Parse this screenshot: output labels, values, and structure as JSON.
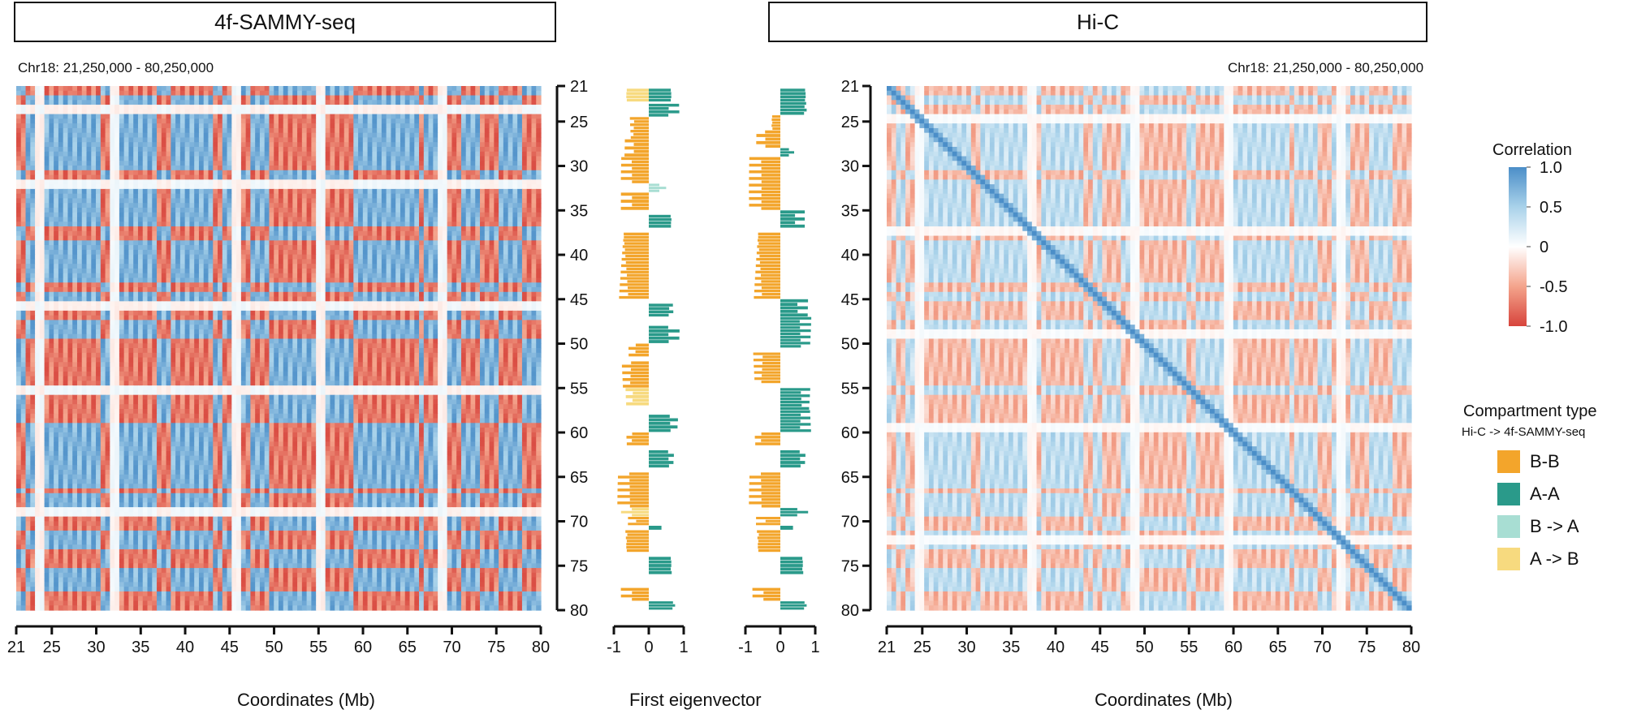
{
  "panels": {
    "left_title": "4f-SAMMY-seq",
    "right_title": "Hi-C",
    "left_region": "Chr18: 21,250,000 - 80,250,000",
    "right_region": "Chr18: 21,250,000 - 80,250,000",
    "x_label_left": "Coordinates (Mb)",
    "x_label_middle": "First eigenvector",
    "x_label_right": "Coordinates (Mb)"
  },
  "legend": {
    "correlation_title": "Correlation",
    "correlation_ticks": [
      "1.0",
      "0.5",
      "0",
      "-0.5",
      "-1.0"
    ],
    "correlation_colors": [
      "#4b8ec8",
      "#a9d2ea",
      "#ffffff",
      "#f4a48c",
      "#d7443c"
    ],
    "compartment_title": "Compartment type",
    "compartment_subtitle": "Hi-C -> 4f-SAMMY-seq",
    "compartment_items": [
      {
        "label": "B-B",
        "color": "#f3a52b"
      },
      {
        "label": "A-A",
        "color": "#2a9a8a"
      },
      {
        "label": "B -> A",
        "color": "#a8ded3"
      },
      {
        "label": "A -> B",
        "color": "#f7da7f"
      }
    ]
  },
  "chart_data": [
    {
      "type": "heatmap",
      "title": "4f-SAMMY-seq",
      "region": "Chr18: 21,250,000 - 80,250,000",
      "xlabel": "Coordinates (Mb)",
      "x_ticks": [
        "21",
        "25",
        "30",
        "35",
        "40",
        "45",
        "50",
        "55",
        "60",
        "65",
        "70",
        "75",
        "80"
      ],
      "y_ticks": [
        "21",
        "25",
        "30",
        "35",
        "40",
        "45",
        "50",
        "55",
        "60",
        "65",
        "70",
        "75",
        "80"
      ],
      "xlim": [
        21,
        80
      ],
      "ylim": [
        21,
        80
      ],
      "compartment_sign_by_bin": [
        1,
        1,
        -1,
        -1,
        1,
        1,
        -1,
        -1,
        -1,
        -1,
        -1,
        -1,
        -1,
        -1,
        -1,
        -1,
        -1,
        -1,
        1,
        1,
        -1,
        -1,
        -1,
        -1,
        -1,
        -1,
        -1,
        -1,
        -1,
        -1,
        1,
        1,
        1,
        -1,
        -1,
        -1,
        -1,
        -1,
        -1,
        -1,
        -1,
        -1,
        1,
        1,
        -1,
        -1,
        1,
        1,
        1,
        1,
        -1,
        -1,
        -1,
        -1,
        1,
        1,
        1,
        1,
        1,
        1,
        1,
        1,
        1,
        1,
        -1,
        -1,
        1,
        1,
        1,
        1,
        1,
        1,
        -1,
        -1,
        -1,
        -1,
        -1,
        -1,
        -1,
        -1,
        -1,
        -1,
        -1,
        -1,
        -1,
        -1,
        1,
        -1,
        -1,
        -1,
        -1,
        -1,
        1,
        1,
        1,
        -1,
        -1,
        -1,
        -1,
        1,
        1,
        1,
        1,
        -1,
        -1,
        -1,
        -1,
        -1,
        1,
        1,
        1,
        1
      ],
      "value_range": [
        -1.0,
        1.0
      ]
    },
    {
      "type": "bar",
      "xlabel": "First eigenvector",
      "x_ticks": [
        "-1",
        "0",
        "1"
      ],
      "xlim": [
        -1,
        1
      ],
      "ylim": [
        21,
        80
      ],
      "description_series": "4f-SAMMY-seq first eigenvector along Chr18, colored by compartment type",
      "segments": [
        {
          "start": 21.3,
          "end": 22.8,
          "value": -0.8,
          "type": "A -> B"
        },
        {
          "start": 21.3,
          "end": 22.8,
          "value": 0.8,
          "type": "A-A"
        },
        {
          "start": 23.0,
          "end": 24.5,
          "value": 0.9,
          "type": "A-A"
        },
        {
          "start": 24.5,
          "end": 27.0,
          "value": -0.6,
          "type": "B-B"
        },
        {
          "start": 27.0,
          "end": 29.0,
          "value": -0.7,
          "type": "B-B"
        },
        {
          "start": 29.0,
          "end": 32.0,
          "value": -0.8,
          "type": "B-B"
        },
        {
          "start": 32.0,
          "end": 33.0,
          "value": 0.5,
          "type": "B -> A"
        },
        {
          "start": 33.0,
          "end": 35.0,
          "value": -0.8,
          "type": "B-B"
        },
        {
          "start": 35.5,
          "end": 37.0,
          "value": 0.8,
          "type": "A-A"
        },
        {
          "start": 37.5,
          "end": 45.0,
          "value": -0.9,
          "type": "B-B"
        },
        {
          "start": 45.5,
          "end": 47.0,
          "value": 0.8,
          "type": "A-A"
        },
        {
          "start": 48.0,
          "end": 50.0,
          "value": 0.9,
          "type": "A-A"
        },
        {
          "start": 50.0,
          "end": 51.5,
          "value": -0.6,
          "type": "B-B"
        },
        {
          "start": 52.0,
          "end": 55.0,
          "value": -0.8,
          "type": "B-B"
        },
        {
          "start": 55.0,
          "end": 57.0,
          "value": -0.7,
          "type": "A -> B"
        },
        {
          "start": 58.0,
          "end": 60.0,
          "value": 0.9,
          "type": "A-A"
        },
        {
          "start": 60.0,
          "end": 61.5,
          "value": -0.7,
          "type": "B-B"
        },
        {
          "start": 62.0,
          "end": 64.0,
          "value": 0.8,
          "type": "A-A"
        },
        {
          "start": 64.5,
          "end": 68.5,
          "value": -0.9,
          "type": "B-B"
        },
        {
          "start": 68.5,
          "end": 69.5,
          "value": -0.8,
          "type": "A -> B"
        },
        {
          "start": 69.5,
          "end": 70.5,
          "value": -0.6,
          "type": "B-B"
        },
        {
          "start": 70.5,
          "end": 71.0,
          "value": 0.6,
          "type": "A-A"
        },
        {
          "start": 71.0,
          "end": 73.5,
          "value": -0.8,
          "type": "B-B"
        },
        {
          "start": 74.0,
          "end": 76.0,
          "value": 0.8,
          "type": "A-A"
        },
        {
          "start": 77.5,
          "end": 79.0,
          "value": -0.8,
          "type": "B-B"
        },
        {
          "start": 79.0,
          "end": 80.0,
          "value": 0.9,
          "type": "A-A"
        }
      ]
    },
    {
      "type": "bar",
      "xlabel": "",
      "x_ticks": [
        "-1",
        "0",
        "1"
      ],
      "xlim": [
        -1,
        1
      ],
      "ylim": [
        21,
        80
      ],
      "description_series": "Hi-C first eigenvector along Chr18",
      "segments": [
        {
          "start": 21.3,
          "end": 24.3,
          "value": 0.9,
          "type": "A-A"
        },
        {
          "start": 24.3,
          "end": 26.0,
          "value": -0.3,
          "type": "B-B"
        },
        {
          "start": 26.0,
          "end": 28.0,
          "value": -0.7,
          "type": "B-B"
        },
        {
          "start": 28.0,
          "end": 29.0,
          "value": 0.4,
          "type": "A-A"
        },
        {
          "start": 29.0,
          "end": 35.0,
          "value": -0.9,
          "type": "B-B"
        },
        {
          "start": 35.0,
          "end": 37.0,
          "value": 0.7,
          "type": "A-A"
        },
        {
          "start": 37.5,
          "end": 45.0,
          "value": -0.8,
          "type": "B-B"
        },
        {
          "start": 45.0,
          "end": 47.0,
          "value": 0.8,
          "type": "A-A"
        },
        {
          "start": 47.0,
          "end": 50.5,
          "value": 0.9,
          "type": "A-A"
        },
        {
          "start": 51.0,
          "end": 54.5,
          "value": -0.8,
          "type": "B-B"
        },
        {
          "start": 55.0,
          "end": 57.5,
          "value": 0.9,
          "type": "A-A"
        },
        {
          "start": 57.5,
          "end": 60.0,
          "value": 0.9,
          "type": "A-A"
        },
        {
          "start": 60.0,
          "end": 61.5,
          "value": -0.8,
          "type": "B-B"
        },
        {
          "start": 62.0,
          "end": 64.0,
          "value": 0.8,
          "type": "A-A"
        },
        {
          "start": 64.5,
          "end": 68.5,
          "value": -0.9,
          "type": "B-B"
        },
        {
          "start": 68.5,
          "end": 69.5,
          "value": 0.8,
          "type": "A-A"
        },
        {
          "start": 69.5,
          "end": 70.5,
          "value": -0.7,
          "type": "B-B"
        },
        {
          "start": 70.5,
          "end": 71.0,
          "value": 0.6,
          "type": "A-A"
        },
        {
          "start": 71.0,
          "end": 73.5,
          "value": -0.8,
          "type": "B-B"
        },
        {
          "start": 74.0,
          "end": 76.0,
          "value": 0.8,
          "type": "A-A"
        },
        {
          "start": 77.5,
          "end": 79.0,
          "value": -0.8,
          "type": "B-B"
        },
        {
          "start": 79.0,
          "end": 80.0,
          "value": 0.9,
          "type": "A-A"
        }
      ]
    },
    {
      "type": "heatmap",
      "title": "Hi-C",
      "region": "Chr18: 21,250,000 - 80,250,000",
      "xlabel": "Coordinates (Mb)",
      "x_ticks": [
        "21",
        "25",
        "30",
        "35",
        "40",
        "45",
        "50",
        "55",
        "60",
        "65",
        "70",
        "75",
        "80"
      ],
      "y_ticks": [
        "21",
        "25",
        "30",
        "35",
        "40",
        "45",
        "50",
        "55",
        "60",
        "65",
        "70",
        "75",
        "80"
      ],
      "xlim": [
        21,
        80
      ],
      "ylim": [
        21,
        80
      ],
      "value_range": [
        -1.0,
        1.0
      ]
    }
  ]
}
